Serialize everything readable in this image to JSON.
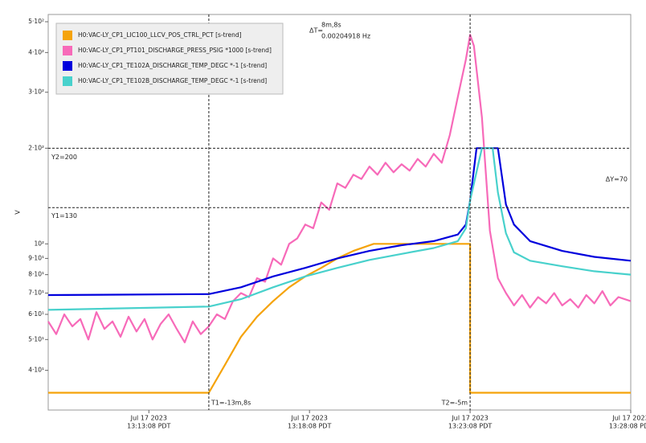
{
  "chart_data": {
    "type": "line",
    "y_label": "V",
    "log_y": true,
    "ylim": [
      30,
      527
    ],
    "yticks": [
      {
        "value": 40,
        "label": "4·10¹"
      },
      {
        "value": 50,
        "label": "5·10¹"
      },
      {
        "value": 60,
        "label": "6·10¹"
      },
      {
        "value": 70,
        "label": "7·10¹"
      },
      {
        "value": 80,
        "label": "8·10¹"
      },
      {
        "value": 90,
        "label": "9·10¹"
      },
      {
        "value": 100,
        "label": "10²"
      },
      {
        "value": 200,
        "label": "2·10²"
      },
      {
        "value": 300,
        "label": "3·10²"
      },
      {
        "value": 400,
        "label": "4·10²"
      },
      {
        "value": 500,
        "label": "5·10²"
      }
    ],
    "xlim": [
      "13:10:00",
      "13:28:08"
    ],
    "xticks": [
      {
        "value": "13:13:08",
        "label": [
          "Jul 17 2023",
          "13:13:08 PDT"
        ]
      },
      {
        "value": "13:18:08",
        "label": [
          "Jul 17 2023",
          "13:18:08 PDT"
        ]
      },
      {
        "value": "13:23:08",
        "label": [
          "Jul 17 2023",
          "13:23:08 PDT"
        ]
      },
      {
        "value": "13:28:08",
        "label": [
          "Jul 17 2023",
          "13:28:08 PDT"
        ]
      }
    ],
    "cursors": {
      "t1": "13:15:00",
      "t2": "13:23:08",
      "y1": 130,
      "y2": 200,
      "t1_label": "T1=-13m,8s",
      "t2_label": "T2=-5m",
      "y1_label": "Y1=130",
      "y2_label": "Y2=200",
      "dt_label": "ΔT=",
      "dt_value": "8m,8s",
      "freq": "0.00204918 Hz",
      "dy_label": "ΔY=70"
    },
    "series": [
      {
        "name": "H0:VAC-LY_CP1_LIC100_LLCV_POS_CTRL_PCT [s-trend]",
        "color": "#f5a30a",
        "x": [
          "13:10:00",
          "13:15:00",
          "13:15:30",
          "13:16:00",
          "13:16:30",
          "13:17:00",
          "13:17:30",
          "13:18:00",
          "13:18:30",
          "13:19:00",
          "13:19:30",
          "13:20:08",
          "13:23:08",
          "13:23:08",
          "13:28:08"
        ],
        "values": [
          34,
          34,
          41.6,
          51,
          59,
          66,
          73,
          79,
          84,
          90,
          95,
          100,
          100,
          34,
          34
        ]
      },
      {
        "name": "H0:VAC-LY_CP1_PT101_DISCHARGE_PRESS_PSIG *1000 [s-trend]",
        "color": "#f76ab9",
        "x": [
          "13:10:00",
          "13:10:15",
          "13:10:30",
          "13:10:45",
          "13:11:00",
          "13:11:15",
          "13:11:30",
          "13:11:45",
          "13:12:00",
          "13:12:15",
          "13:12:30",
          "13:12:45",
          "13:13:00",
          "13:13:15",
          "13:13:30",
          "13:13:45",
          "13:14:00",
          "13:14:15",
          "13:14:30",
          "13:14:45",
          "13:15:00",
          "13:15:15",
          "13:15:30",
          "13:15:45",
          "13:16:00",
          "13:16:15",
          "13:16:30",
          "13:16:45",
          "13:17:00",
          "13:17:15",
          "13:17:30",
          "13:17:45",
          "13:18:00",
          "13:18:15",
          "13:18:30",
          "13:18:45",
          "13:19:00",
          "13:19:15",
          "13:19:30",
          "13:19:45",
          "13:20:00",
          "13:20:15",
          "13:20:30",
          "13:20:45",
          "13:21:00",
          "13:21:15",
          "13:21:30",
          "13:21:45",
          "13:22:00",
          "13:22:15",
          "13:22:30",
          "13:22:45",
          "13:23:00",
          "13:23:08",
          "13:23:15",
          "13:23:30",
          "13:23:45",
          "13:24:00",
          "13:24:15",
          "13:24:30",
          "13:24:45",
          "13:25:00",
          "13:25:15",
          "13:25:30",
          "13:25:45",
          "13:26:00",
          "13:26:15",
          "13:26:30",
          "13:26:45",
          "13:27:00",
          "13:27:15",
          "13:27:30",
          "13:27:45",
          "13:28:08"
        ],
        "values": [
          57,
          52,
          60,
          55,
          58,
          50,
          61,
          54,
          57,
          51,
          59,
          53,
          58,
          50,
          56,
          60,
          54,
          49,
          57,
          52,
          55,
          60,
          58,
          66,
          70,
          68,
          78,
          76,
          90,
          86,
          100,
          104,
          115,
          112,
          135,
          128,
          155,
          150,
          165,
          160,
          175,
          165,
          180,
          168,
          178,
          170,
          185,
          175,
          192,
          180,
          220,
          290,
          380,
          455,
          420,
          250,
          110,
          78,
          70,
          64,
          69,
          63,
          68,
          65,
          70,
          64,
          67,
          63,
          69,
          65,
          71,
          64,
          68,
          66
        ]
      },
      {
        "name": "H0:VAC-LY_CP1_TE102A_DISCHARGE_TEMP_DEGC *-1 [s-trend]",
        "color": "#0000dd",
        "x": [
          "13:10:00",
          "13:15:00",
          "13:16:00",
          "13:17:00",
          "13:18:00",
          "13:19:00",
          "13:20:00",
          "13:21:00",
          "13:22:00",
          "13:22:45",
          "13:23:00",
          "13:23:08",
          "13:23:20",
          "13:24:00",
          "13:24:15",
          "13:24:30",
          "13:25:00",
          "13:26:00",
          "13:27:00",
          "13:28:08"
        ],
        "values": [
          69,
          69.5,
          73,
          79,
          84,
          90,
          95,
          99,
          102,
          107,
          115,
          137,
          200,
          200,
          133,
          115,
          102,
          95,
          91,
          88.5
        ]
      },
      {
        "name": "H0:VAC-LY_CP1_TE102B_DISCHARGE_TEMP_DEGC *-1 [s-trend]",
        "color": "#48d1cc",
        "x": [
          "13:10:00",
          "13:15:00",
          "13:16:00",
          "13:17:00",
          "13:18:00",
          "13:19:00",
          "13:20:00",
          "13:21:00",
          "13:22:00",
          "13:22:45",
          "13:23:00",
          "13:23:08",
          "13:23:30",
          "13:23:50",
          "13:24:00",
          "13:24:15",
          "13:24:30",
          "13:25:00",
          "13:26:00",
          "13:27:00",
          "13:28:08"
        ],
        "values": [
          62,
          63.5,
          67,
          73,
          79,
          84,
          89,
          93,
          97,
          102,
          112,
          137,
          200,
          200,
          145,
          108,
          94,
          88.5,
          85,
          82,
          80
        ]
      }
    ]
  }
}
